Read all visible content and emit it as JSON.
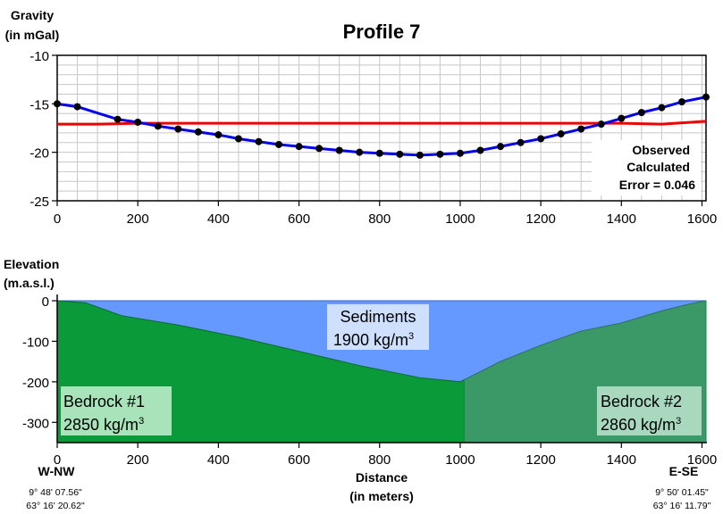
{
  "chart_data": [
    {
      "type": "line",
      "title": "Profile 7",
      "ylabel_line1": "Gravity",
      "ylabel_line2": "(in mGal)",
      "xlim": [
        0,
        1610
      ],
      "ylim": [
        -25,
        -10
      ],
      "xticks": [
        0,
        200,
        400,
        600,
        800,
        1000,
        1200,
        1400,
        1600
      ],
      "yticks": [
        -10,
        -15,
        -20,
        -25
      ],
      "grid": true,
      "legend_placement": "bottom-right",
      "series": [
        {
          "name": "Observed",
          "color": "#000000",
          "marker": "circle",
          "x": [
            0,
            50,
            150,
            200,
            250,
            300,
            350,
            400,
            450,
            500,
            550,
            600,
            650,
            700,
            750,
            800,
            850,
            900,
            950,
            1000,
            1050,
            1100,
            1150,
            1200,
            1250,
            1300,
            1350,
            1400,
            1450,
            1500,
            1550,
            1610
          ],
          "y": [
            -15.0,
            -15.3,
            -16.6,
            -16.9,
            -17.3,
            -17.6,
            -17.9,
            -18.2,
            -18.6,
            -18.9,
            -19.2,
            -19.4,
            -19.6,
            -19.8,
            -20.0,
            -20.1,
            -20.2,
            -20.3,
            -20.2,
            -20.1,
            -19.8,
            -19.4,
            -19.0,
            -18.6,
            -18.1,
            -17.6,
            -17.1,
            -16.5,
            -15.9,
            -15.4,
            -14.8,
            -14.3
          ]
        },
        {
          "name": "Calculated",
          "color": "#0000ee",
          "x": [
            0,
            50,
            150,
            200,
            250,
            300,
            350,
            400,
            450,
            500,
            550,
            600,
            650,
            700,
            750,
            800,
            850,
            900,
            950,
            1000,
            1050,
            1100,
            1150,
            1200,
            1250,
            1300,
            1350,
            1400,
            1450,
            1500,
            1550,
            1610
          ],
          "y": [
            -15.0,
            -15.3,
            -16.6,
            -16.9,
            -17.3,
            -17.6,
            -17.9,
            -18.2,
            -18.6,
            -18.9,
            -19.2,
            -19.4,
            -19.6,
            -19.8,
            -20.0,
            -20.1,
            -20.2,
            -20.3,
            -20.2,
            -20.1,
            -19.8,
            -19.4,
            -19.0,
            -18.6,
            -18.1,
            -17.6,
            -17.1,
            -16.5,
            -15.9,
            -15.4,
            -14.8,
            -14.3
          ]
        },
        {
          "name": "Error = 0.046",
          "color": "#ee0000",
          "x": [
            0,
            100,
            200,
            400,
            600,
            800,
            1000,
            1200,
            1400,
            1500,
            1610
          ],
          "y": [
            -17.1,
            -17.1,
            -17.0,
            -17.0,
            -17.0,
            -17.0,
            -17.0,
            -17.0,
            -17.0,
            -17.1,
            -16.8
          ]
        }
      ]
    },
    {
      "type": "area",
      "ylabel_line1": "Elevation",
      "ylabel_line2": "(m.a.s.l.)",
      "xlabel_line1": "Distance",
      "xlabel_line2": "(in meters)",
      "xlim": [
        0,
        1610
      ],
      "ylim": [
        -350,
        0
      ],
      "xticks": [
        0,
        200,
        400,
        600,
        800,
        1000,
        1200,
        1400,
        1600
      ],
      "yticks": [
        0,
        -100,
        -200,
        -300
      ],
      "surface": {
        "x": [
          0,
          1610
        ],
        "y": [
          0,
          0
        ]
      },
      "sediment_base": {
        "x": [
          0,
          70,
          160,
          300,
          450,
          600,
          750,
          900,
          1000,
          1100,
          1200,
          1300,
          1400,
          1500,
          1570,
          1610
        ],
        "y": [
          0,
          -5,
          -37,
          -60,
          -90,
          -125,
          -160,
          -190,
          -200,
          -150,
          -110,
          -75,
          -55,
          -25,
          -8,
          0
        ]
      },
      "bedrock_boundary_x": 1010,
      "bodies": [
        {
          "name": "Sediments",
          "density_value": "1900 kg/m",
          "density_exp": "3",
          "color": "#6699ff"
        },
        {
          "name": "Bedrock #1",
          "density_value": "2850 kg/m",
          "density_exp": "3",
          "color": "#0b9a3a"
        },
        {
          "name": "Bedrock #2",
          "density_value": "2860 kg/m",
          "density_exp": "3",
          "color": "#3a9966"
        }
      ],
      "endpoints": {
        "left": {
          "label": "W-NW",
          "lat": "9° 48' 07.56\"",
          "lon": "63° 16' 20.62\""
        },
        "right": {
          "label": "E-SE",
          "lat": "9° 50' 01.45\"",
          "lon": "63° 16' 11.79\""
        }
      }
    }
  ]
}
